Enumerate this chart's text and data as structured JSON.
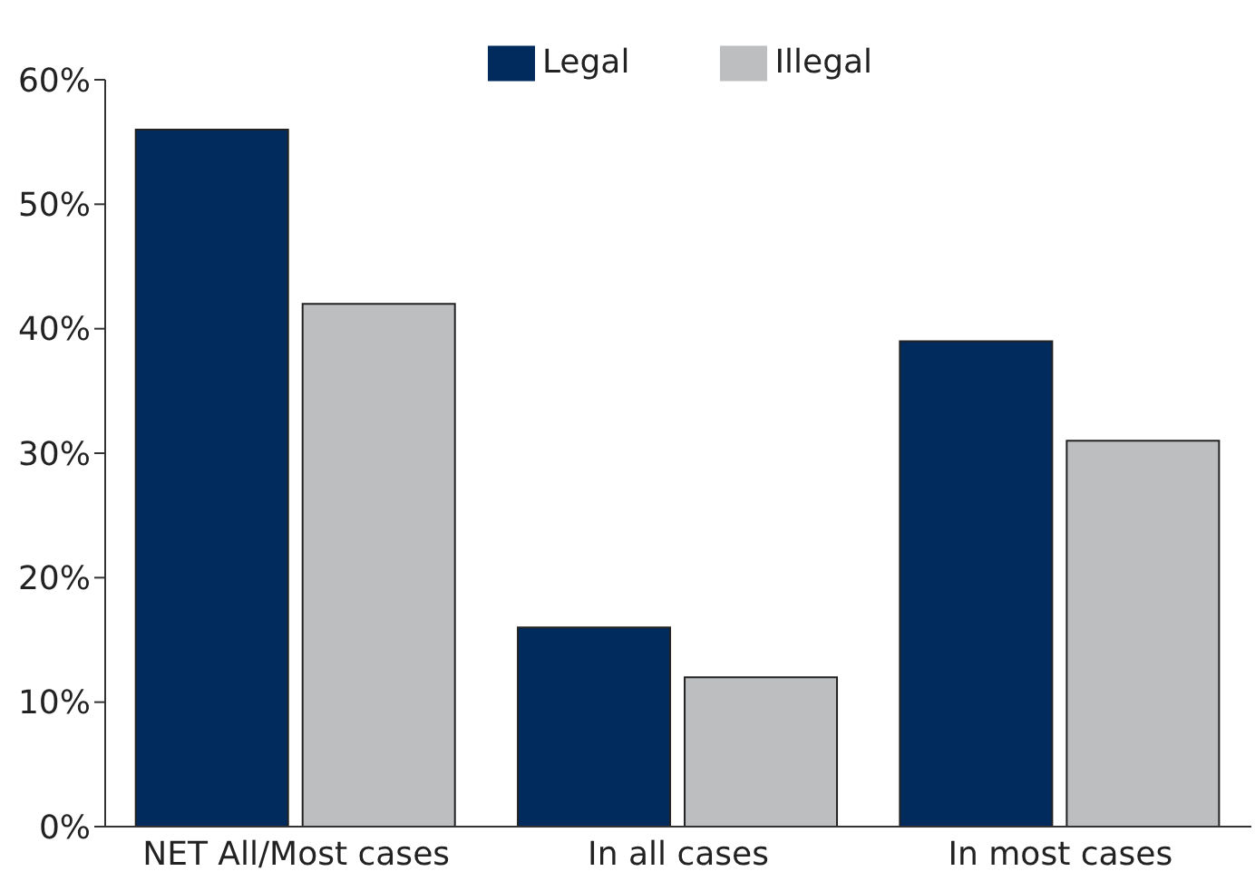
{
  "chart_data": {
    "type": "bar",
    "categories": [
      "NET All/Most cases",
      "In all cases",
      "In most cases"
    ],
    "series": [
      {
        "name": "Legal",
        "color": "#002b5c",
        "values": [
          56,
          16,
          39
        ]
      },
      {
        "name": "Illegal",
        "color": "#bcbec0",
        "values": [
          42,
          12,
          31
        ]
      }
    ],
    "ylim": [
      0,
      60
    ],
    "yticks": [
      {
        "value": 0,
        "label": "0%"
      },
      {
        "value": 10,
        "label": "10%"
      },
      {
        "value": 20,
        "label": "20%"
      },
      {
        "value": 30,
        "label": "30%"
      },
      {
        "value": 40,
        "label": "40%"
      },
      {
        "value": 50,
        "label": "50%"
      },
      {
        "value": 60,
        "label": "60%"
      }
    ],
    "grid": false,
    "legend": "top"
  }
}
